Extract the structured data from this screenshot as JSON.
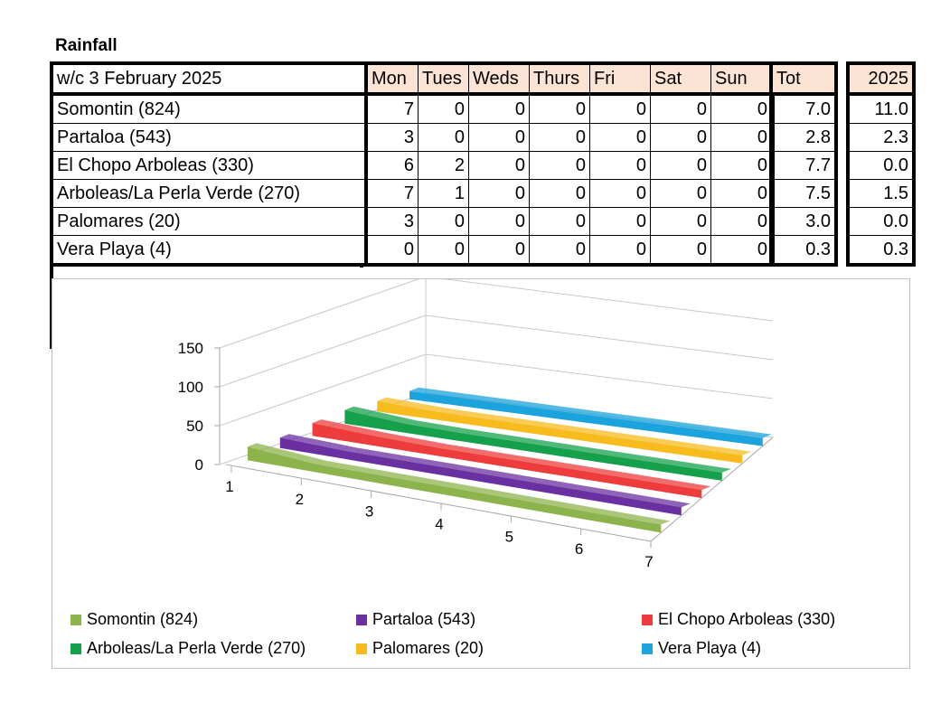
{
  "title": "Rainfall",
  "table": {
    "week_label": "w/c 3 February  2025",
    "days": [
      "Mon",
      "Tues",
      "Weds",
      "Thurs",
      "Fri",
      "Sat",
      "Sun"
    ],
    "tot_header": "Tot",
    "year_header": "2025",
    "rows": [
      {
        "name": "Somontin (824)",
        "values": [
          "7",
          "0",
          "0",
          "0",
          "0",
          "0",
          "0"
        ],
        "tot": "7.0",
        "year": "11.0"
      },
      {
        "name": "Partaloa (543)",
        "values": [
          "3",
          "0",
          "0",
          "0",
          "0",
          "0",
          "0"
        ],
        "tot": "2.8",
        "year": "2.3"
      },
      {
        "name": "El Chopo Arboleas (330)",
        "values": [
          "6",
          "2",
          "0",
          "0",
          "0",
          "0",
          "0"
        ],
        "tot": "7.7",
        "year": "0.0"
      },
      {
        "name": "Arboleas/La Perla Verde (270)",
        "values": [
          "7",
          "1",
          "0",
          "0",
          "0",
          "0",
          "0"
        ],
        "tot": "7.5",
        "year": "1.5"
      },
      {
        "name": "Palomares (20)",
        "values": [
          "3",
          "0",
          "0",
          "0",
          "0",
          "0",
          "0"
        ],
        "tot": "3.0",
        "year": "0.0"
      },
      {
        "name": "Vera Playa (4)",
        "values": [
          "0",
          "0",
          "0",
          "0",
          "0",
          "0",
          "0"
        ],
        "tot": "0.3",
        "year": "0.3"
      }
    ]
  },
  "chart_data": {
    "type": "area",
    "subtype": "3d-area",
    "x": [
      "1",
      "2",
      "3",
      "4",
      "5",
      "6",
      "7"
    ],
    "yticks": [
      "0",
      "50",
      "100",
      "150"
    ],
    "ylim": [
      0,
      150
    ],
    "legend_position": "bottom",
    "series": [
      {
        "name": "Somontin (824)",
        "values": [
          7,
          0,
          0,
          0,
          0,
          0,
          0
        ],
        "color": "#8db44c"
      },
      {
        "name": "Partaloa (543)",
        "values": [
          3,
          0,
          0,
          0,
          0,
          0,
          0
        ],
        "color": "#6a2fa0"
      },
      {
        "name": "El Chopo Arboleas (330)",
        "values": [
          6,
          2,
          0,
          0,
          0,
          0,
          0
        ],
        "color": "#ee3b3b"
      },
      {
        "name": "Arboleas/La Perla Verde (270)",
        "values": [
          7,
          1,
          0,
          0,
          0,
          0,
          0
        ],
        "color": "#15a14c"
      },
      {
        "name": "Palomares (20)",
        "values": [
          3,
          0,
          0,
          0,
          0,
          0,
          0
        ],
        "color": "#f7bb1e"
      },
      {
        "name": "Vera Playa (4)",
        "values": [
          0,
          0,
          0,
          0,
          0,
          0,
          0
        ],
        "color": "#1aa3dc"
      }
    ]
  }
}
